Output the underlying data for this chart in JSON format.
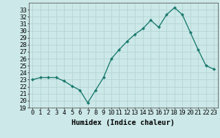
{
  "x": [
    0,
    1,
    2,
    3,
    4,
    5,
    6,
    7,
    8,
    9,
    10,
    11,
    12,
    13,
    14,
    15,
    16,
    17,
    18,
    19,
    20,
    21,
    22,
    23
  ],
  "y": [
    23.0,
    23.3,
    23.3,
    23.3,
    22.8,
    22.1,
    21.5,
    19.7,
    21.5,
    23.3,
    26.0,
    27.3,
    28.5,
    29.5,
    30.3,
    31.5,
    30.5,
    32.3,
    33.3,
    32.3,
    29.8,
    27.3,
    25.0,
    24.5
  ],
  "line_color": "#1a7a6e",
  "marker": "D",
  "marker_size": 2.2,
  "bg_color": "#cce8e8",
  "grid_color": "#b0d0d0",
  "xlabel": "Humidex (Indice chaleur)",
  "xlim": [
    -0.5,
    23.5
  ],
  "ylim": [
    19,
    34
  ],
  "yticks": [
    19,
    20,
    21,
    22,
    23,
    24,
    25,
    26,
    27,
    28,
    29,
    30,
    31,
    32,
    33
  ],
  "xticks": [
    0,
    1,
    2,
    3,
    4,
    5,
    6,
    7,
    8,
    9,
    10,
    11,
    12,
    13,
    14,
    15,
    16,
    17,
    18,
    19,
    20,
    21,
    22,
    23
  ],
  "xtick_labels": [
    "0",
    "1",
    "2",
    "3",
    "4",
    "5",
    "6",
    "7",
    "8",
    "9",
    "10",
    "11",
    "12",
    "13",
    "14",
    "15",
    "16",
    "17",
    "18",
    "19",
    "20",
    "21",
    "22",
    "23"
  ],
  "ytick_labels": [
    "19",
    "20",
    "21",
    "22",
    "23",
    "24",
    "25",
    "26",
    "27",
    "28",
    "29",
    "30",
    "31",
    "32",
    "33"
  ],
  "tick_color": "#000000",
  "spine_color": "#555555",
  "font_color": "#000000",
  "xlabel_fontsize": 7.5,
  "tick_fontsize": 6.5,
  "line_width": 1.0
}
